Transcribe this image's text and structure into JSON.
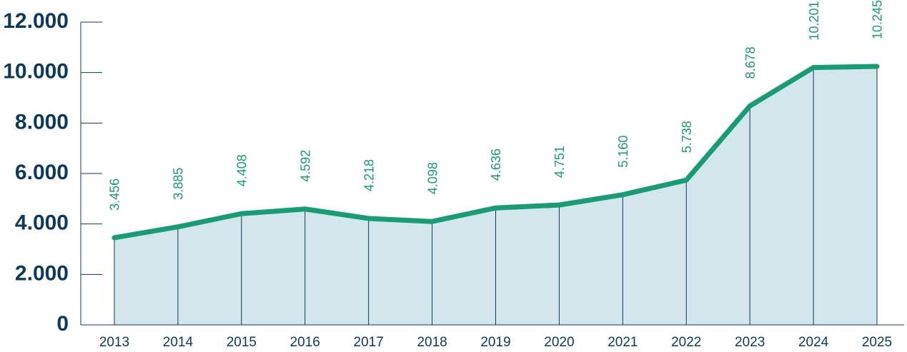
{
  "chart_data": {
    "type": "area",
    "categories": [
      "2013",
      "2014",
      "2015",
      "2016",
      "2017",
      "2018",
      "2019",
      "2020",
      "2021",
      "2022",
      "2023",
      "2024",
      "2025"
    ],
    "values": [
      3456,
      3885,
      4408,
      4592,
      4218,
      4098,
      4636,
      4751,
      5160,
      5738,
      8678,
      10201,
      10245
    ],
    "value_labels": [
      "3.456",
      "3.885",
      "4.408",
      "4.592",
      "4.218",
      "4.098",
      "4.636",
      "4.751",
      "5.160",
      "5.738",
      "8.678",
      "10.201",
      "10.245"
    ],
    "color": "#179c74",
    "fill_color": "#d2e6ec",
    "ylim": [
      0,
      12000
    ],
    "yticks": [
      0,
      {
        "value": 2000,
        "label": "2.000"
      },
      {
        "value": 4000,
        "label": "4.000"
      },
      {
        "value": 6000,
        "label": "6.000"
      },
      {
        "value": 8000,
        "label": "8.000"
      },
      {
        "value": 10000,
        "label": "10.000"
      },
      {
        "value": 12000,
        "label": "12.000"
      }
    ]
  }
}
